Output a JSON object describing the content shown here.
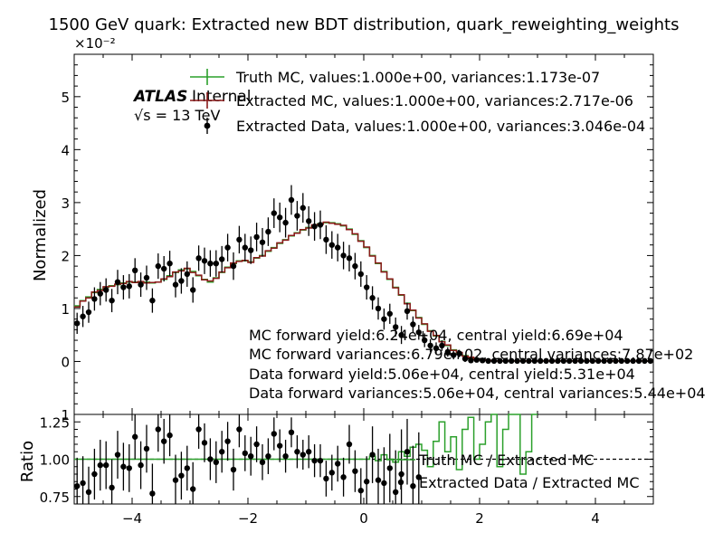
{
  "chart_data": {
    "type": "histogram",
    "title": "1500 GeV quark: Extracted new BDT distribution, quark_reweighting_weights",
    "branding": {
      "experiment": "ATLAS",
      "status": "Internal",
      "energy": "√s = 13 TeV"
    },
    "main_panel": {
      "ylabel": "Normalized",
      "y_multiplier": "×10⁻²",
      "ylim": [
        -0.01,
        0.058
      ],
      "yticks": [
        0,
        0.01,
        0.02,
        0.03,
        0.04,
        0.05
      ],
      "ytick_labels": [
        "0",
        "1",
        "2",
        "3",
        "4",
        "5"
      ],
      "yticks_edge_label": "1",
      "bin_edges_start": -5.0,
      "bin_width": 0.1,
      "n_bins": 100,
      "series": [
        {
          "name": "Truth MC, values:1.000e+00, variances:1.173e-07",
          "style": "step",
          "color": "#2ca02c",
          "values": [
            0.0105,
            0.0115,
            0.0122,
            0.013,
            0.0136,
            0.014,
            0.0143,
            0.0145,
            0.0148,
            0.015,
            0.015,
            0.015,
            0.015,
            0.0148,
            0.015,
            0.0155,
            0.0162,
            0.0168,
            0.0173,
            0.0175,
            0.017,
            0.0162,
            0.0155,
            0.015,
            0.0158,
            0.0168,
            0.0178,
            0.0185,
            0.019,
            0.019,
            0.0188,
            0.0195,
            0.02,
            0.0208,
            0.0215,
            0.0223,
            0.023,
            0.0237,
            0.0243,
            0.0248,
            0.0253,
            0.0257,
            0.026,
            0.0262,
            0.0262,
            0.026,
            0.0256,
            0.025,
            0.024,
            0.0228,
            0.0215,
            0.02,
            0.0185,
            0.017,
            0.0155,
            0.014,
            0.0125,
            0.011,
            0.0096,
            0.0083,
            0.007,
            0.0058,
            0.0048,
            0.0038,
            0.003,
            0.0022,
            0.0016,
            0.0011,
            0.0007,
            0.0004,
            0.0003,
            0.0002,
            0.0001,
            0.0001,
            0.0001,
            0.0001,
            0.0001,
            0.0001,
            0.0001,
            0.0001,
            0.0001,
            0.0001,
            0.0001,
            0.0001,
            0.0001,
            0.0001,
            0.0001,
            0.0001,
            0.0001,
            0.0001,
            0.0001,
            0.0001,
            0.0001,
            0.0001,
            0.0001,
            0.0001,
            0.0001,
            0.0001,
            0.0001,
            0.0001
          ]
        },
        {
          "name": "Extracted MC, values:1.000e+00, variances:2.717e-06",
          "style": "step",
          "color": "#8b1a1a",
          "values": [
            0.0103,
            0.0114,
            0.012,
            0.0131,
            0.0134,
            0.0141,
            0.0142,
            0.0146,
            0.0147,
            0.0151,
            0.0149,
            0.0151,
            0.0148,
            0.0149,
            0.015,
            0.0156,
            0.016,
            0.0169,
            0.0171,
            0.0176,
            0.0168,
            0.0163,
            0.0154,
            0.0152,
            0.0157,
            0.0169,
            0.0177,
            0.0186,
            0.0189,
            0.0191,
            0.0187,
            0.0196,
            0.0199,
            0.0209,
            0.0214,
            0.0224,
            0.0229,
            0.0238,
            0.0242,
            0.0249,
            0.0252,
            0.0258,
            0.0259,
            0.0263,
            0.0261,
            0.0259,
            0.0257,
            0.0249,
            0.0241,
            0.0227,
            0.0216,
            0.0199,
            0.0186,
            0.0169,
            0.0156,
            0.0139,
            0.0126,
            0.0109,
            0.0097,
            0.0082,
            0.0071,
            0.0057,
            0.0049,
            0.0037,
            0.0031,
            0.0021,
            0.0017,
            0.001,
            0.0008,
            0.0004,
            0.0003,
            0.0002,
            0.0001,
            0.0001,
            0.0001,
            0.0001,
            0.0001,
            0.0001,
            0.0001,
            0.0001,
            0.0001,
            0.0001,
            0.0001,
            0.0001,
            0.0001,
            0.0001,
            0.0001,
            0.0001,
            0.0001,
            0.0001,
            0.0001,
            0.0001,
            0.0001,
            0.0001,
            0.0001,
            0.0001,
            0.0001,
            0.0001,
            0.0001,
            0.0001
          ]
        },
        {
          "name": "Extracted Data, values:1.000e+00, variances:3.046e-04",
          "style": "errorbar",
          "color": "#000000",
          "x": [
            -4.95,
            -4.85,
            -4.75,
            -4.65,
            -4.55,
            -4.45,
            -4.35,
            -4.25,
            -4.15,
            -4.05,
            -3.95,
            -3.85,
            -3.75,
            -3.65,
            -3.55,
            -3.45,
            -3.35,
            -3.25,
            -3.15,
            -3.05,
            -2.95,
            -2.85,
            -2.75,
            -2.65,
            -2.55,
            -2.45,
            -2.35,
            -2.25,
            -2.15,
            -2.05,
            -1.95,
            -1.85,
            -1.75,
            -1.65,
            -1.55,
            -1.45,
            -1.35,
            -1.25,
            -1.15,
            -1.05,
            -0.95,
            -0.85,
            -0.75,
            -0.65,
            -0.55,
            -0.45,
            -0.35,
            -0.25,
            -0.15,
            -0.05,
            0.05,
            0.15,
            0.25,
            0.35,
            0.45,
            0.55,
            0.65,
            0.75,
            0.85,
            0.95,
            1.05,
            1.15,
            1.25,
            1.35,
            1.45,
            1.55,
            1.65,
            1.75,
            1.85,
            1.95,
            2.05,
            2.15,
            2.25,
            2.35,
            2.45,
            2.55,
            2.65,
            2.75,
            2.85,
            2.95,
            3.05,
            3.15,
            3.25,
            3.35,
            3.45,
            3.55,
            3.65,
            3.75,
            3.85,
            3.95,
            4.05,
            4.15,
            4.25,
            4.35,
            4.45,
            4.55,
            4.65,
            4.75,
            4.85,
            4.95
          ],
          "values": [
            0.0072,
            0.0085,
            0.0093,
            0.0118,
            0.0128,
            0.0135,
            0.0115,
            0.015,
            0.014,
            0.0142,
            0.0172,
            0.0145,
            0.0158,
            0.0115,
            0.018,
            0.0175,
            0.0185,
            0.0145,
            0.0152,
            0.0165,
            0.0135,
            0.0195,
            0.019,
            0.0185,
            0.0185,
            0.0193,
            0.0215,
            0.018,
            0.023,
            0.0215,
            0.021,
            0.0235,
            0.0225,
            0.0245,
            0.028,
            0.0272,
            0.0262,
            0.0305,
            0.0275,
            0.029,
            0.0265,
            0.0255,
            0.0258,
            0.023,
            0.022,
            0.0215,
            0.02,
            0.0195,
            0.018,
            0.0165,
            0.014,
            0.012,
            0.01,
            0.008,
            0.009,
            0.0065,
            0.005,
            0.0095,
            0.007,
            0.0055,
            0.004,
            0.003,
            0.0025,
            0.003,
            0.0018,
            0.0012,
            0.0015,
            0.0005,
            0.0002,
            0.0003,
            0.0002,
            0.0001,
            0.0001,
            0.0001,
            0.0001,
            0.0001,
            0.0001,
            0.0001,
            0.0001,
            0.0001,
            0.0001,
            0.0001,
            0.0001,
            0.0001,
            0.0001,
            0.0001,
            0.0001,
            0.0001,
            0.0001,
            0.0001,
            0.0001,
            0.0001,
            0.0001,
            0.0001,
            0.0001,
            0.0001,
            0.0001,
            0.0001,
            0.0001,
            0.0001
          ],
          "errors": [
            0.002,
            0.002,
            0.002,
            0.0022,
            0.0022,
            0.0022,
            0.0022,
            0.0023,
            0.0023,
            0.0023,
            0.0023,
            0.0023,
            0.0023,
            0.0023,
            0.0024,
            0.0024,
            0.0024,
            0.0024,
            0.0024,
            0.0024,
            0.0024,
            0.0024,
            0.0025,
            0.0025,
            0.0025,
            0.0025,
            0.0026,
            0.0026,
            0.0026,
            0.0026,
            0.0026,
            0.0027,
            0.0027,
            0.0027,
            0.0028,
            0.0028,
            0.0028,
            0.0028,
            0.0028,
            0.0028,
            0.0028,
            0.0027,
            0.0027,
            0.0027,
            0.0026,
            0.0026,
            0.0026,
            0.0025,
            0.0025,
            0.0024,
            0.0023,
            0.0022,
            0.0021,
            0.002,
            0.0019,
            0.0018,
            0.0017,
            0.0016,
            0.0015,
            0.0014,
            0.0013,
            0.0012,
            0.0011,
            0.001,
            0.0009,
            0.0008,
            0.0007,
            0.0006,
            0.0005,
            0.0004,
            0.0003,
            0.0002,
            0.0002,
            0.0002,
            0.0002,
            0.0002,
            0.0002,
            0.0002,
            0.0002,
            0.0002,
            0.0002,
            0.0002,
            0.0002,
            0.0002,
            0.0002,
            0.0002,
            0.0002,
            0.0002,
            0.0002,
            0.0002,
            0.0002,
            0.0002,
            0.0002,
            0.0002,
            0.0002,
            0.0002,
            0.0002,
            0.0002,
            0.0002,
            0.0002
          ]
        }
      ],
      "annotations": [
        "MC forward yield:6.24e+04, central yield:6.69e+04",
        "MC forward variances:6.79e+02, central variances:7.87e+02",
        "Data forward yield:5.06e+04, central yield:5.31e+04",
        "Data forward variances:5.06e+04, central variances:5.44e+04"
      ]
    },
    "ratio_panel": {
      "ylabel": "Ratio",
      "ylim": [
        0.7,
        1.3
      ],
      "yticks": [
        0.75,
        1.0,
        1.25
      ],
      "ytick_labels": [
        "0.75",
        "1.00",
        "1.25"
      ],
      "reference_line": 1.0,
      "series": [
        {
          "name": "Truth MC / Extracted MC",
          "style": "step",
          "color": "#2ca02c",
          "values": [
            1.0,
            1.0,
            1.0,
            1.0,
            1.0,
            1.0,
            1.0,
            1.0,
            1.0,
            1.0,
            1.0,
            1.0,
            1.0,
            1.0,
            1.0,
            1.0,
            1.0,
            1.0,
            1.0,
            1.0,
            1.0,
            1.0,
            1.0,
            1.0,
            1.0,
            1.0,
            1.0,
            1.0,
            1.0,
            1.0,
            1.0,
            1.0,
            1.0,
            1.0,
            1.0,
            1.0,
            1.0,
            1.0,
            1.0,
            1.0,
            1.0,
            1.0,
            1.0,
            1.0,
            1.0,
            1.0,
            1.0,
            1.0,
            1.0,
            1.0,
            1.0,
            1.02,
            0.99,
            1.03,
            1.0,
            0.98,
            1.05,
            1.02,
            1.08,
            1.1,
            1.06,
            0.95,
            1.12,
            1.25,
            1.05,
            1.15,
            0.93,
            1.2,
            1.28,
            1.0,
            1.1,
            1.25,
            1.3,
            0.95,
            1.2,
            1.3,
            1.3,
            0.9,
            1.05,
            1.3,
            null,
            null,
            null,
            null,
            null,
            null,
            null,
            null,
            null,
            null,
            null,
            null,
            null,
            null,
            null,
            null,
            null,
            null,
            null,
            null
          ]
        },
        {
          "name": "Extracted Data / Extracted MC",
          "style": "errorbar",
          "color": "#000000",
          "x": [
            -4.95,
            -4.85,
            -4.75,
            -4.65,
            -4.55,
            -4.45,
            -4.35,
            -4.25,
            -4.15,
            -4.05,
            -3.95,
            -3.85,
            -3.75,
            -3.65,
            -3.55,
            -3.45,
            -3.35,
            -3.25,
            -3.15,
            -3.05,
            -2.95,
            -2.85,
            -2.75,
            -2.65,
            -2.55,
            -2.45,
            -2.35,
            -2.25,
            -2.15,
            -2.05,
            -1.95,
            -1.85,
            -1.75,
            -1.65,
            -1.55,
            -1.45,
            -1.35,
            -1.25,
            -1.15,
            -1.05,
            -0.95,
            -0.85,
            -0.75,
            -0.65,
            -0.55,
            -0.45,
            -0.35,
            -0.25,
            -0.15,
            -0.05,
            0.05,
            0.15,
            0.25,
            0.35,
            0.45,
            0.55,
            0.65,
            0.75,
            0.85,
            0.95
          ],
          "values": [
            0.82,
            0.84,
            0.78,
            0.9,
            0.96,
            0.96,
            0.81,
            1.03,
            0.95,
            0.94,
            1.15,
            0.96,
            1.07,
            0.77,
            1.2,
            1.12,
            1.16,
            0.86,
            0.89,
            0.94,
            0.8,
            1.2,
            1.11,
            1.0,
            0.98,
            1.05,
            1.12,
            0.93,
            1.2,
            1.04,
            1.02,
            1.1,
            0.98,
            1.02,
            1.17,
            1.09,
            1.02,
            1.18,
            1.05,
            1.03,
            1.05,
            0.99,
            0.99,
            0.87,
            0.91,
            0.97,
            0.88,
            1.1,
            0.92,
            0.79,
            0.85,
            1.03,
            0.86,
            0.84,
            0.94,
            0.78,
            0.9,
            1.05,
            0.82,
            0.88
          ],
          "errors": [
            0.19,
            0.18,
            0.17,
            0.17,
            0.17,
            0.16,
            0.19,
            0.16,
            0.16,
            0.16,
            0.15,
            0.16,
            0.16,
            0.2,
            0.15,
            0.15,
            0.14,
            0.17,
            0.16,
            0.15,
            0.18,
            0.13,
            0.13,
            0.14,
            0.14,
            0.14,
            0.13,
            0.14,
            0.12,
            0.12,
            0.13,
            0.12,
            0.12,
            0.12,
            0.11,
            0.11,
            0.11,
            0.1,
            0.11,
            0.1,
            0.11,
            0.11,
            0.11,
            0.12,
            0.12,
            0.12,
            0.13,
            0.13,
            0.14,
            0.15,
            0.17,
            0.19,
            0.21,
            0.24,
            0.23,
            0.28,
            0.3,
            0.22,
            0.27,
            0.3
          ]
        }
      ]
    },
    "xlabel": "",
    "xlim": [
      -5.0,
      5.0
    ],
    "xticks": [
      -4,
      -2,
      0,
      2,
      4
    ],
    "xtick_labels": [
      "−4",
      "−2",
      "0",
      "2",
      "4"
    ],
    "legend_placement": "top"
  }
}
